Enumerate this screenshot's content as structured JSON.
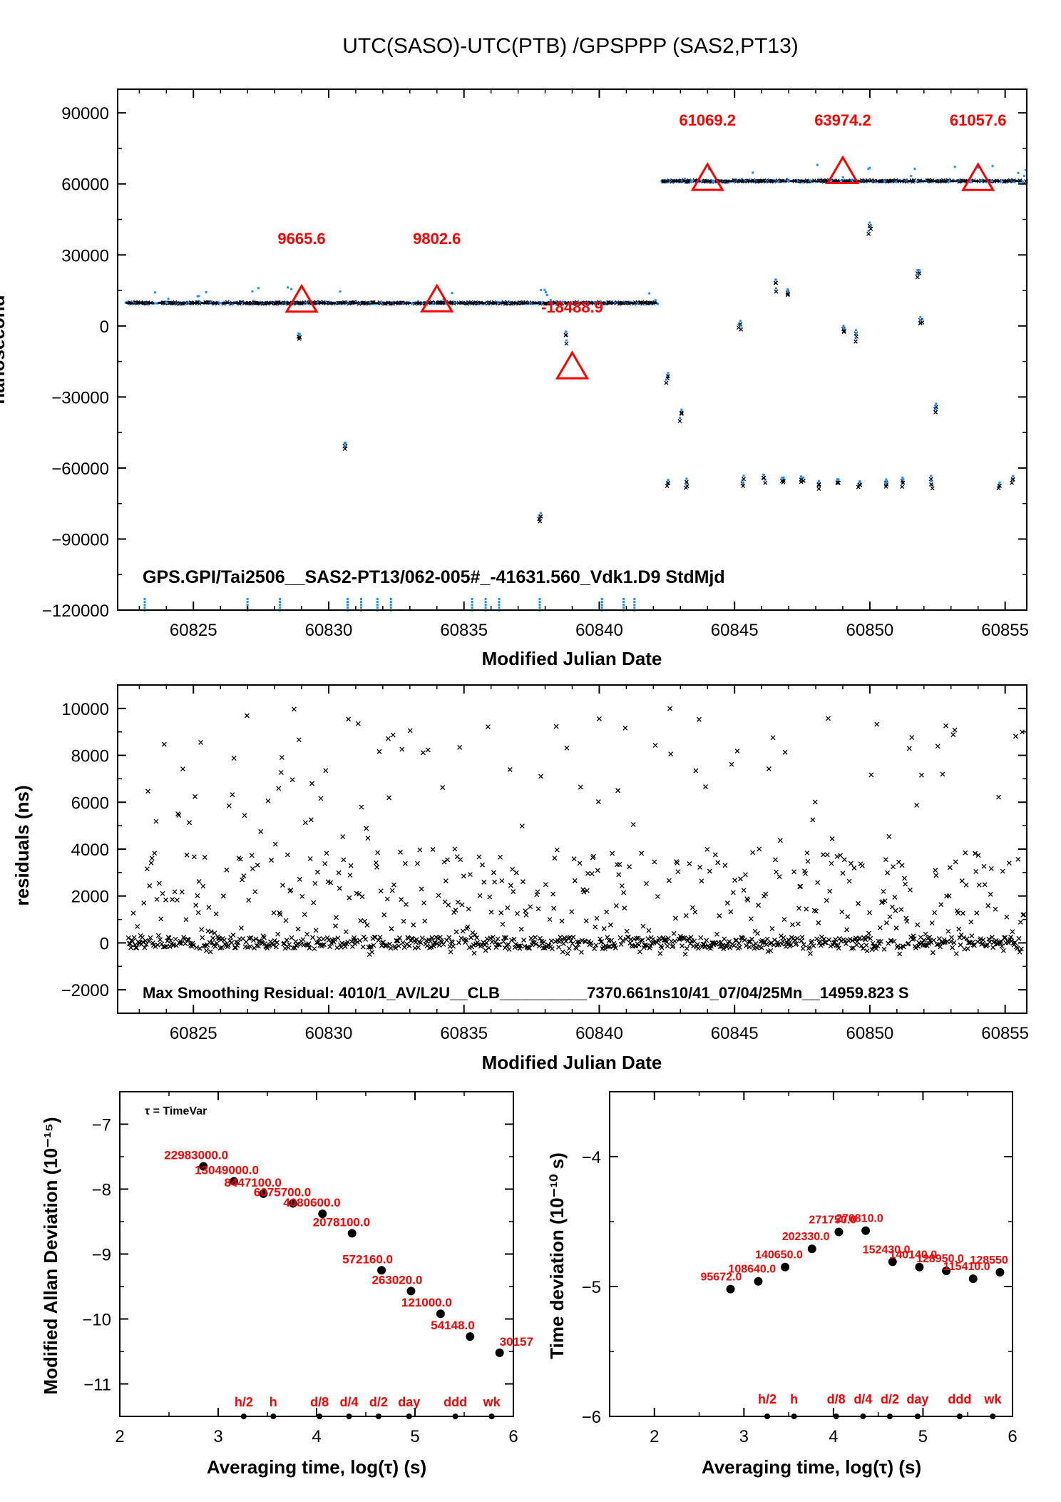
{
  "figure_title": "UTC(SASO)-UTC(PTB)  /GPSPPP  (SAS2,PT13)",
  "chart_data": [
    {
      "type": "scatter",
      "title": "UTC(SASO)-UTC(PTB)  /GPSPPP  (SAS2,PT13)",
      "xlabel": "Modified Julian Date",
      "ylabel": "nanosecond",
      "xlim": [
        60822.2,
        60855.8
      ],
      "ylim": [
        -120000,
        100000
      ],
      "xticks": [
        "60825",
        "60830",
        "60835",
        "60840",
        "60845",
        "60850",
        "60855"
      ],
      "yticks": [
        "90000",
        "60000",
        "30000",
        "0",
        "−30000",
        "−60000",
        "−90000",
        "−120000"
      ],
      "annotation": "GPS.GPI/Tai2506__SAS2-PT13/062-005#_-41631.560_Vdk1.D9  StdMjd",
      "segment_means": [
        {
          "x_start": 60822.5,
          "x_end": 60842.2,
          "y": 9700
        },
        {
          "x_start": 60842.3,
          "x_end": 60855.8,
          "y": 61200
        }
      ],
      "markers": [
        {
          "x": 60829.0,
          "y": 9665.6,
          "label": "9665.6"
        },
        {
          "x": 60834.0,
          "y": 9802.6,
          "label": "9802.6"
        },
        {
          "x": 60839.0,
          "y": -18488.9,
          "label": "-18488.9"
        },
        {
          "x": 60844.0,
          "y": 61069.2,
          "label": "61069.2"
        },
        {
          "x": 60849.0,
          "y": 63974.2,
          "label": "63974.2"
        },
        {
          "x": 60854.0,
          "y": 61057.6,
          "label": "61057.6"
        }
      ],
      "outliers": [
        {
          "x": 60828.9,
          "y": -3500
        },
        {
          "x": 60830.6,
          "y": -50000
        },
        {
          "x": 60837.8,
          "y": -80000
        },
        {
          "x": 60838.8,
          "y": -5000
        },
        {
          "x": 60842.5,
          "y": -22000
        },
        {
          "x": 60843.0,
          "y": -38000
        },
        {
          "x": 60845.2,
          "y": 1000
        },
        {
          "x": 60846.5,
          "y": 17000
        },
        {
          "x": 60847.0,
          "y": 14000
        },
        {
          "x": 60849.0,
          "y": -2500
        },
        {
          "x": 60849.5,
          "y": -4000
        },
        {
          "x": 60850.0,
          "y": 41000
        },
        {
          "x": 60851.8,
          "y": 21000
        },
        {
          "x": 60851.9,
          "y": 3000
        },
        {
          "x": 60852.4,
          "y": -35000
        },
        {
          "x": 60842.5,
          "y": -66000
        },
        {
          "x": 60843.2,
          "y": -66000
        },
        {
          "x": 60845.3,
          "y": -66000
        },
        {
          "x": 60846.1,
          "y": -65000
        },
        {
          "x": 60846.8,
          "y": -66000
        },
        {
          "x": 60847.5,
          "y": -65000
        },
        {
          "x": 60848.1,
          "y": -67000
        },
        {
          "x": 60848.8,
          "y": -66000
        },
        {
          "x": 60849.6,
          "y": -66000
        },
        {
          "x": 60850.6,
          "y": -66000
        },
        {
          "x": 60851.2,
          "y": -66000
        },
        {
          "x": 60852.3,
          "y": -66000
        },
        {
          "x": 60854.8,
          "y": -66000
        },
        {
          "x": 60855.3,
          "y": -66000
        }
      ],
      "colors": {
        "points_blue": "#1e90ff",
        "points_black": "#000000",
        "markers": "#ff0000"
      }
    },
    {
      "type": "scatter",
      "xlabel": "Modified Julian Date",
      "ylabel": "residuals (ns)",
      "xlim": [
        60822.2,
        60855.8
      ],
      "ylim": [
        -3000,
        11000
      ],
      "xticks": [
        "60825",
        "60830",
        "60835",
        "60840",
        "60845",
        "60850",
        "60855"
      ],
      "yticks": [
        "10000",
        "8000",
        "6000",
        "4000",
        "2000",
        "0",
        "−2000"
      ],
      "annotation": "Max Smoothing Residual: 4010/1_AV/L2U__CLB__________7370.661ns10/41_07/04/25Mn__14959.823  S"
    },
    {
      "type": "scatter",
      "xlabel": "Averaging time, log(τ) (s)",
      "ylabel": "Modified Allan Deviation (10⁻¹⁵)",
      "xlim": [
        2,
        6
      ],
      "ylim": [
        -11.5,
        -6.5
      ],
      "xticks": [
        "2",
        "3",
        "4",
        "5",
        "6"
      ],
      "yticks": [
        "−7",
        "−8",
        "−9",
        "−10",
        "−11"
      ],
      "legend_note": "τ = TimeVar",
      "x": [
        2.85,
        3.16,
        3.46,
        3.76,
        4.06,
        4.36,
        4.66,
        4.96,
        5.26,
        5.56,
        5.86
      ],
      "y": [
        -7.65,
        -7.88,
        -8.07,
        -8.22,
        -8.38,
        -8.68,
        -9.25,
        -9.57,
        -9.92,
        -10.27,
        -10.52
      ],
      "point_labels": [
        "22983000.0",
        "13049000.0",
        "8447100.0",
        "6075700.0",
        "4080600.0",
        "2078100.0",
        "572160.0",
        "263020.0",
        "121000.0",
        "54148.0",
        "30157"
      ],
      "time_marks": [
        "h/2",
        "h",
        "d/8",
        "d/4",
        "d/2",
        "day",
        "ddd",
        "wk"
      ],
      "time_mark_x": [
        3.26,
        3.56,
        4.03,
        4.33,
        4.63,
        4.94,
        5.41,
        5.78
      ]
    },
    {
      "type": "scatter",
      "xlabel": "Averaging time, log(τ) (s)",
      "ylabel": "Time deviation (10⁻¹⁰ s)",
      "xlim": [
        1.5,
        6
      ],
      "ylim": [
        -6,
        -3.5
      ],
      "xticks": [
        "2",
        "3",
        "4",
        "5",
        "6"
      ],
      "yticks": [
        "−4",
        "−5",
        "−6"
      ],
      "x": [
        2.85,
        3.16,
        3.46,
        3.76,
        4.06,
        4.36,
        4.66,
        4.96,
        5.26,
        5.56,
        5.86
      ],
      "y": [
        -5.02,
        -4.96,
        -4.85,
        -4.71,
        -4.58,
        -4.57,
        -4.81,
        -4.85,
        -4.88,
        -4.94,
        -4.89
      ],
      "point_labels": [
        "95672.0",
        "108640.0",
        "140650.0",
        "202330.0",
        "271750.0",
        "276810.0",
        "152430.0",
        "140140.0",
        "128950.0",
        "115410.0",
        "128550"
      ],
      "time_marks": [
        "h/2",
        "h",
        "d/8",
        "d/4",
        "d/2",
        "day",
        "ddd",
        "wk"
      ],
      "time_mark_x": [
        3.26,
        3.56,
        4.03,
        4.33,
        4.63,
        4.94,
        5.41,
        5.78
      ]
    }
  ]
}
